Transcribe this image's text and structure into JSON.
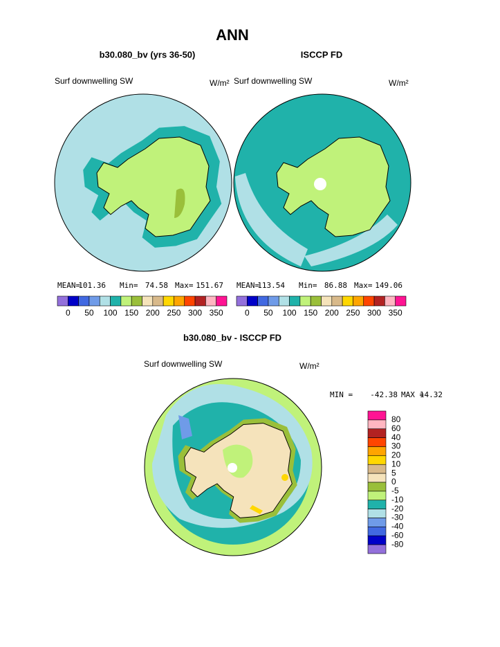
{
  "title": "ANN",
  "panels": [
    {
      "heading": "b30.080_bv (yrs 36-50)",
      "variable": "Surf downwelling SW",
      "units": "W/m²",
      "stats": [
        {
          "label": "MEAN=",
          "value": 101.36
        },
        {
          "label": "Min=",
          "value": 74.58
        },
        {
          "label": "Max=",
          "value": 151.67
        }
      ]
    },
    {
      "heading": "ISCCP FD",
      "variable": "Surf downwelling SW",
      "units": "W/m²",
      "stats": [
        {
          "label": "MEAN=",
          "value": 113.54
        },
        {
          "label": "Min=",
          "value": 86.88
        },
        {
          "label": "Max=",
          "value": 149.06
        }
      ]
    }
  ],
  "colorbar": {
    "colors": [
      "#9370db",
      "#0000c8",
      "#4169e1",
      "#6f9be8",
      "#b0e0e6",
      "#20b2aa",
      "#c0f27a",
      "#9abf3a",
      "#f5e3bb",
      "#d8b98a",
      "#ffd700",
      "#ffa500",
      "#ff4500",
      "#b22222",
      "#ffb6c1",
      "#ff1493"
    ],
    "labels": [
      0,
      50,
      100,
      150,
      200,
      250,
      300,
      350
    ]
  },
  "difference": {
    "heading": "b30.080_bv - ISCCP FD",
    "variable": "Surf downwelling SW",
    "units": "W/m²",
    "stats": [
      {
        "label": "MIN =",
        "value": -42.38
      },
      {
        "label": "MAX =",
        "value": 14.32
      }
    ],
    "colorbar": {
      "colors": [
        "#ff1493",
        "#ffb6c1",
        "#b22222",
        "#ff4500",
        "#ffa500",
        "#ffd700",
        "#d8b98a",
        "#f5e3bb",
        "#9abf3a",
        "#c0f27a",
        "#20b2aa",
        "#b0e0e6",
        "#6f9be8",
        "#4169e1",
        "#0000c8",
        "#9370db"
      ],
      "labels": [
        80,
        60,
        40,
        30,
        20,
        10,
        5,
        0,
        -5,
        -10,
        -20,
        -30,
        -40,
        -60,
        -80
      ]
    }
  }
}
